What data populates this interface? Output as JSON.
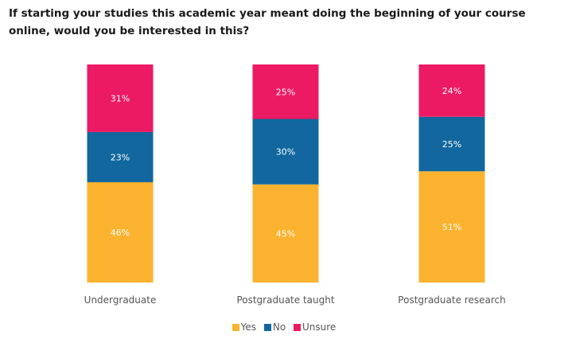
{
  "title": "If starting your studies this academic year meant doing the beginning of your course online, would you be interested in this?",
  "chart_data": {
    "type": "bar",
    "stacked": true,
    "categories": [
      "Undergraduate",
      "Postgraduate taught",
      "Postgraduate research"
    ],
    "series": [
      {
        "name": "Yes",
        "color": "#fbb32f",
        "values": [
          46,
          45,
          51
        ]
      },
      {
        "name": "No",
        "color": "#11679e",
        "values": [
          23,
          30,
          25
        ]
      },
      {
        "name": "Unsure",
        "color": "#ec1a62",
        "values": [
          31,
          25,
          24
        ]
      }
    ],
    "data_labels": [
      [
        "46%",
        "45%",
        "51%"
      ],
      [
        "23%",
        "30%",
        "25%"
      ],
      [
        "31%",
        "25%",
        "24%"
      ]
    ],
    "ylim": [
      0,
      100
    ],
    "grid": false,
    "legend_position": "bottom-center"
  }
}
